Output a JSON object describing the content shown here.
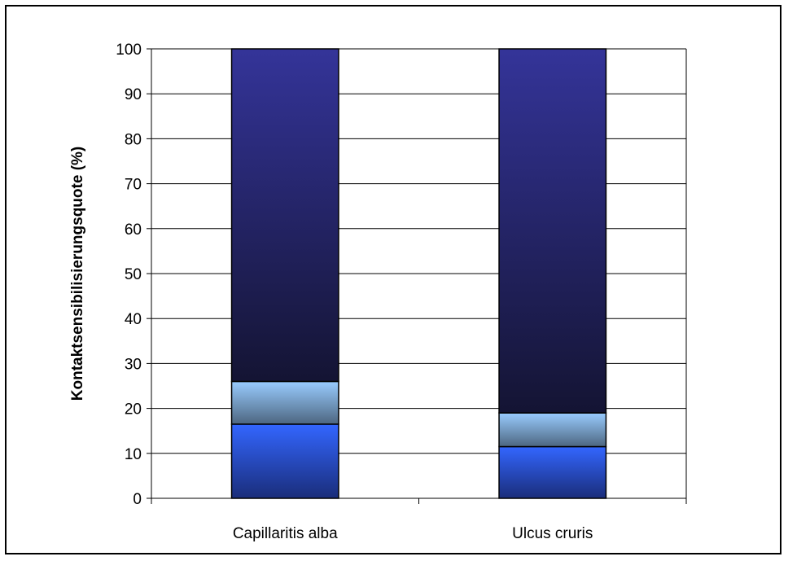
{
  "chart_data": {
    "type": "bar",
    "stacked": true,
    "categories": [
      "Capillaritis alba",
      "Ulcus cruris"
    ],
    "series": [
      {
        "values": [
          16.5,
          11.5
        ],
        "colors": [
          "#3366ff",
          "#1a2d7a"
        ]
      },
      {
        "values": [
          9.5,
          7.5
        ],
        "colors": [
          "#99ccff",
          "#4d6680"
        ]
      },
      {
        "values": [
          74.0,
          81.0
        ],
        "colors": [
          "#343499",
          "#141433"
        ]
      }
    ],
    "title": "",
    "xlabel": "",
    "ylabel": "Kontaktsensibilisierungsquote (%)",
    "ylim": [
      0,
      100
    ],
    "yticks": [
      0,
      10,
      20,
      30,
      40,
      50,
      60,
      70,
      80,
      90,
      100
    ],
    "grid": true,
    "legend": "none"
  }
}
